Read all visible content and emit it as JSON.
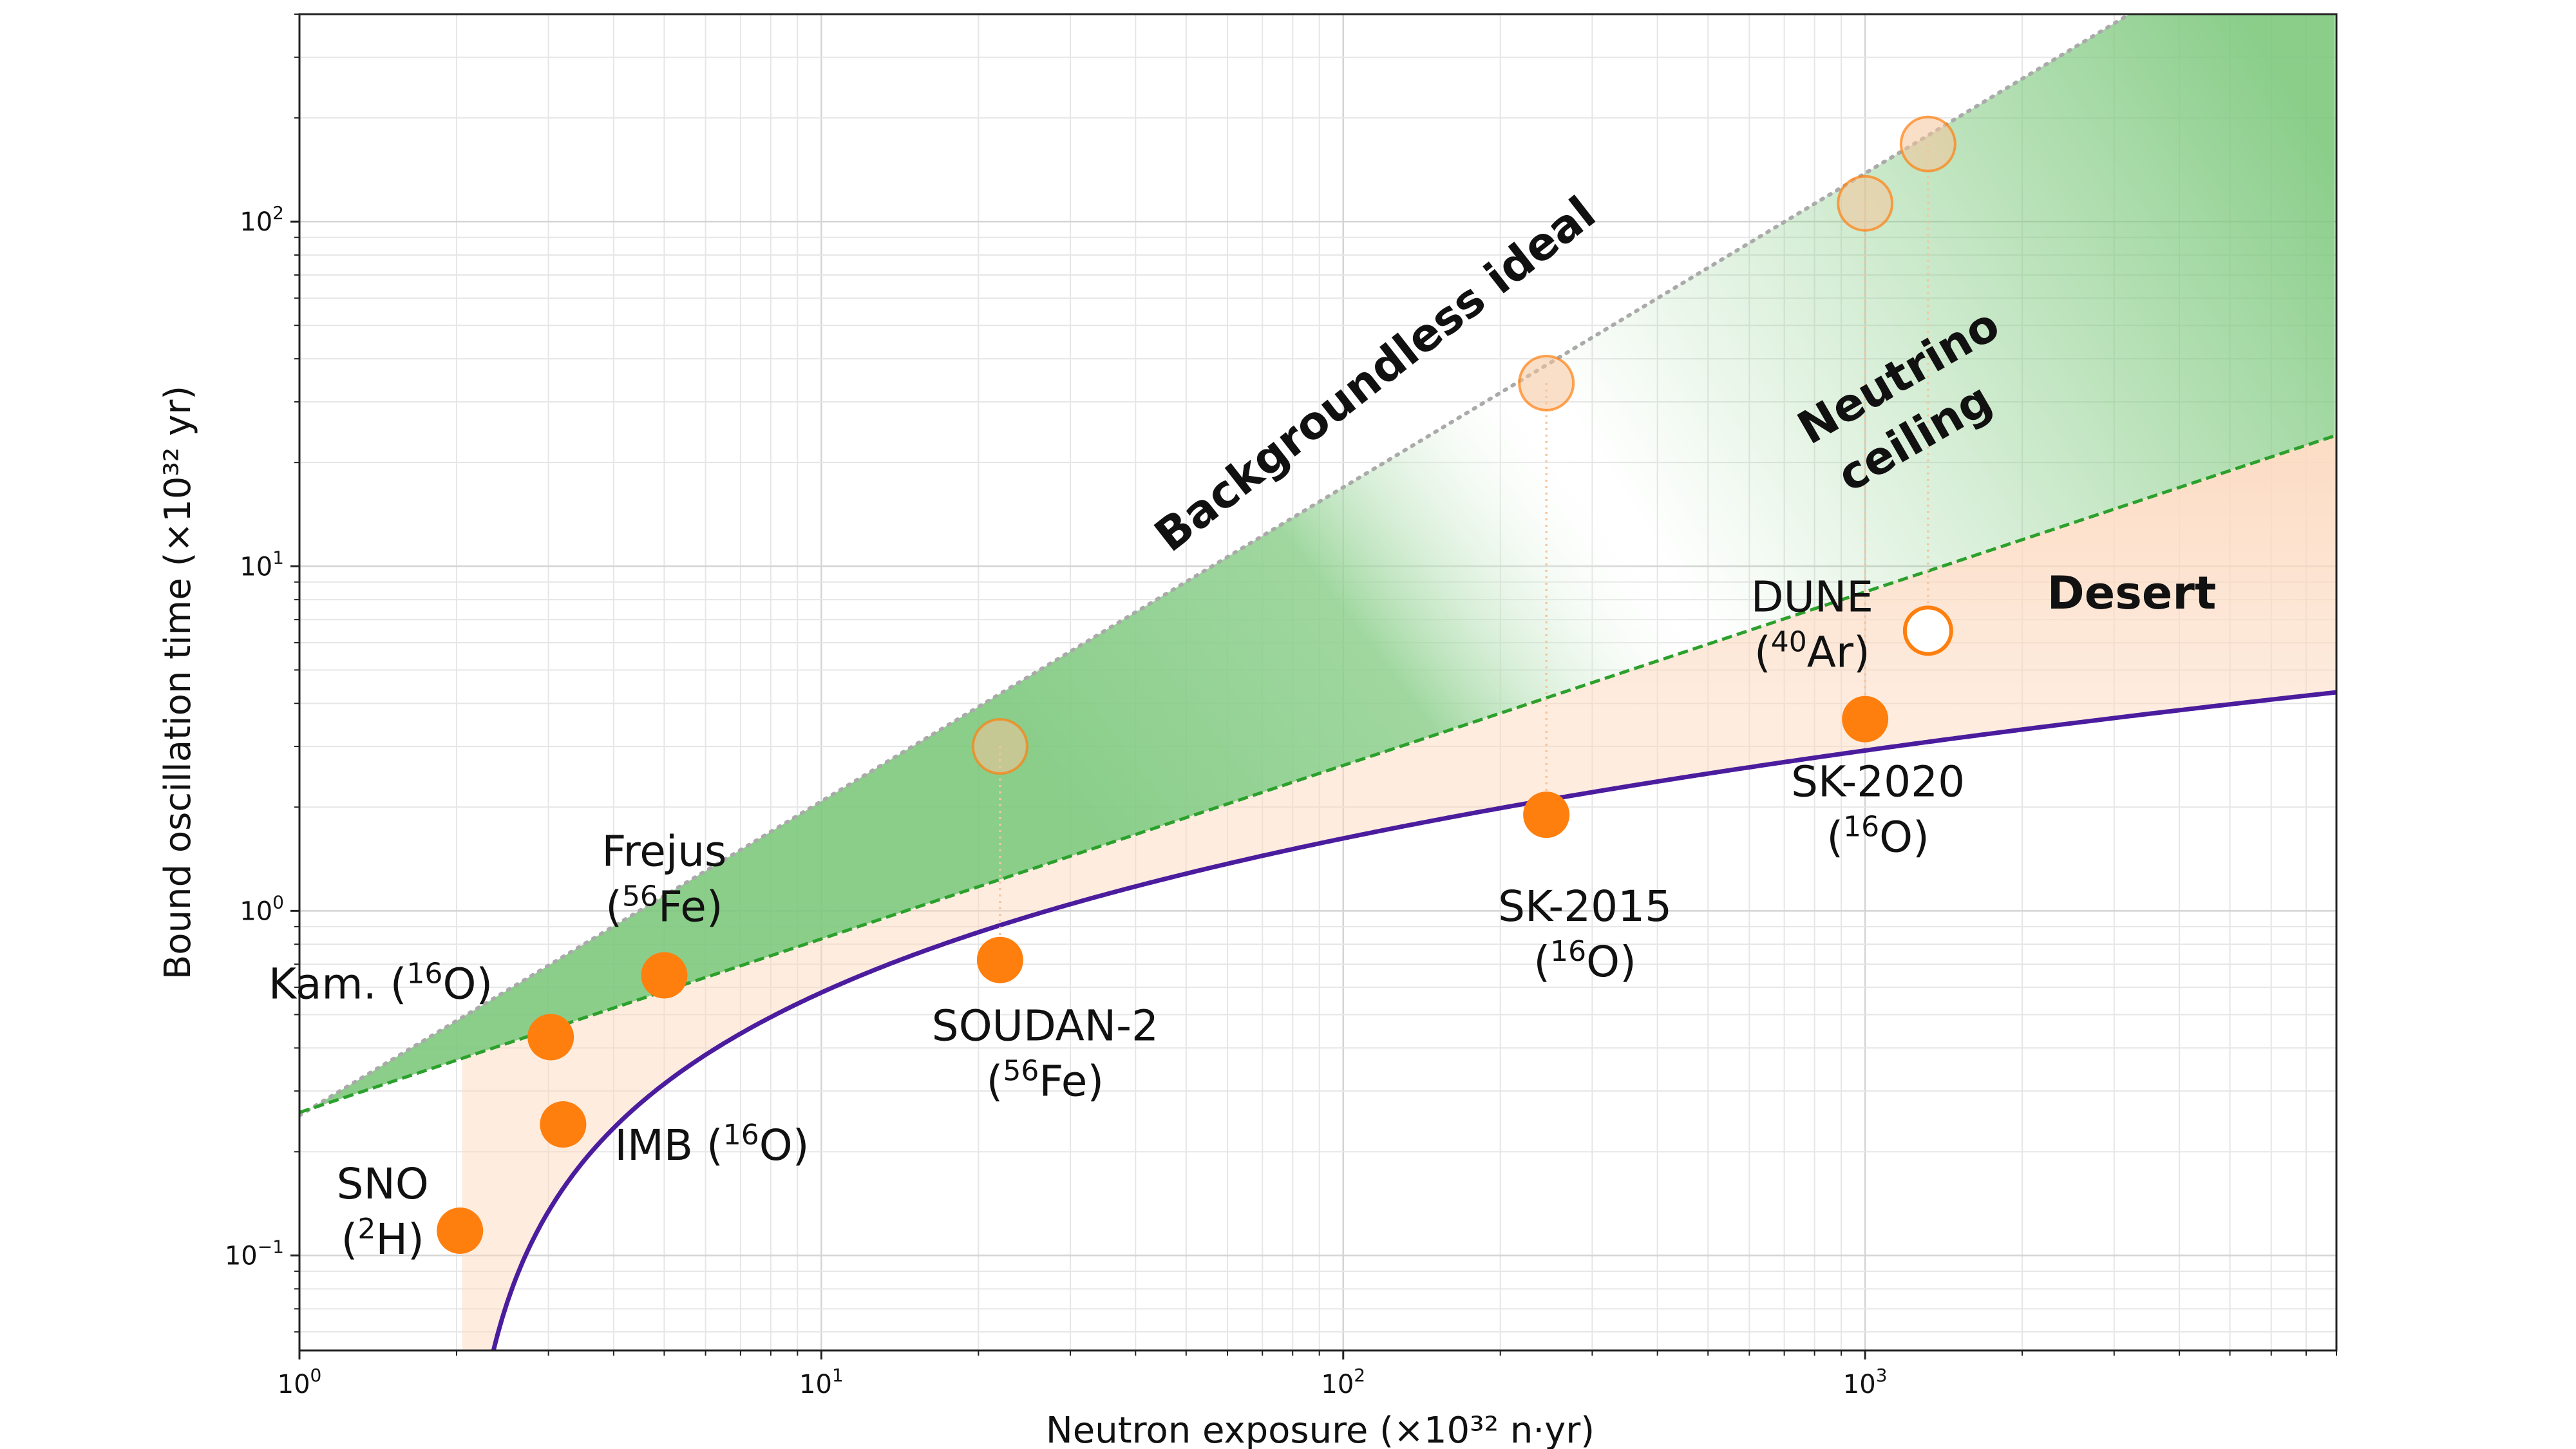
{
  "chart_data": {
    "type": "scatter",
    "xlabel": "Neutron exposure (×10³² n·yr)",
    "ylabel": "Bound oscillation time (×10³² yr)",
    "x_scale": "log",
    "y_scale": "log",
    "xlim": [
      1,
      8000
    ],
    "ylim": [
      0.053,
      400
    ],
    "x_ticks": [
      {
        "value": 1,
        "base": "10",
        "exp": "0"
      },
      {
        "value": 10,
        "base": "10",
        "exp": "1"
      },
      {
        "value": 100,
        "base": "10",
        "exp": "2"
      },
      {
        "value": 1000,
        "base": "10",
        "exp": "3"
      }
    ],
    "y_ticks": [
      {
        "value": 0.1,
        "base": "10",
        "exp": "−1"
      },
      {
        "value": 1,
        "base": "10",
        "exp": "0"
      },
      {
        "value": 10,
        "base": "10",
        "exp": "1"
      },
      {
        "value": 100,
        "base": "10",
        "exp": "2"
      }
    ],
    "grid": true,
    "colors": {
      "measured": "#ff7f0e",
      "ideal": "#f6c49a",
      "ideal_line": "#aaaaaa",
      "ceiling_line": "#2ca02c",
      "green_fill": "#7dc87d",
      "orange_fill": "#fcd9bf",
      "curve": "#4b1d9e"
    },
    "lines": {
      "backgroundless_ideal": {
        "label": "Backgroundless ideal",
        "x": [
          1,
          3300
        ],
        "y": [
          0.255,
          410
        ]
      },
      "neutrino_ceiling": {
        "label_line1": "Neutrino",
        "label_line2": "ceiling",
        "x": [
          1,
          8000
        ],
        "y": [
          0.26,
          24
        ]
      },
      "desert_label": "Desert"
    },
    "experiments": [
      {
        "name": "SNO",
        "nucleus_pre": "(",
        "sup": "2",
        "nucleus": "H)",
        "exposure": 2.03,
        "time": 0.118,
        "ideal": null,
        "open_marker": null
      },
      {
        "name": "IMB",
        "nucleus_pre": "(",
        "sup": "16",
        "nucleus": "O)",
        "exposure": 3.2,
        "time": 0.24,
        "ideal": null,
        "open_marker": null
      },
      {
        "name": "Kam.",
        "nucleus_pre": "(",
        "sup": "16",
        "nucleus": "O)",
        "exposure": 3.03,
        "time": 0.43,
        "ideal": null,
        "open_marker": null
      },
      {
        "name": "Frejus",
        "nucleus_pre": "(",
        "sup": "56",
        "nucleus": "Fe)",
        "exposure": 5.0,
        "time": 0.65,
        "ideal": null,
        "open_marker": null
      },
      {
        "name": "SOUDAN-2",
        "nucleus_pre": "(",
        "sup": "56",
        "nucleus": "Fe)",
        "exposure": 22,
        "time": 0.72,
        "ideal": 3.0,
        "open_marker": null
      },
      {
        "name": "SK-2015",
        "nucleus_pre": "(",
        "sup": "16",
        "nucleus": "O)",
        "exposure": 245,
        "time": 1.9,
        "ideal": 34,
        "open_marker": null
      },
      {
        "name": "SK-2020",
        "nucleus_pre": "(",
        "sup": "16",
        "nucleus": "O)",
        "exposure": 1000,
        "time": 3.6,
        "ideal": 113,
        "open_marker": null
      },
      {
        "name": "DUNE",
        "nucleus_pre": "(",
        "sup": "40",
        "nucleus": "Ar)",
        "exposure": 1320,
        "time": null,
        "ideal": 168,
        "open_marker": 6.5
      }
    ],
    "curve": {
      "x0": 2.0,
      "y_at_x0": 0.0,
      "description": "bound curve"
    }
  }
}
